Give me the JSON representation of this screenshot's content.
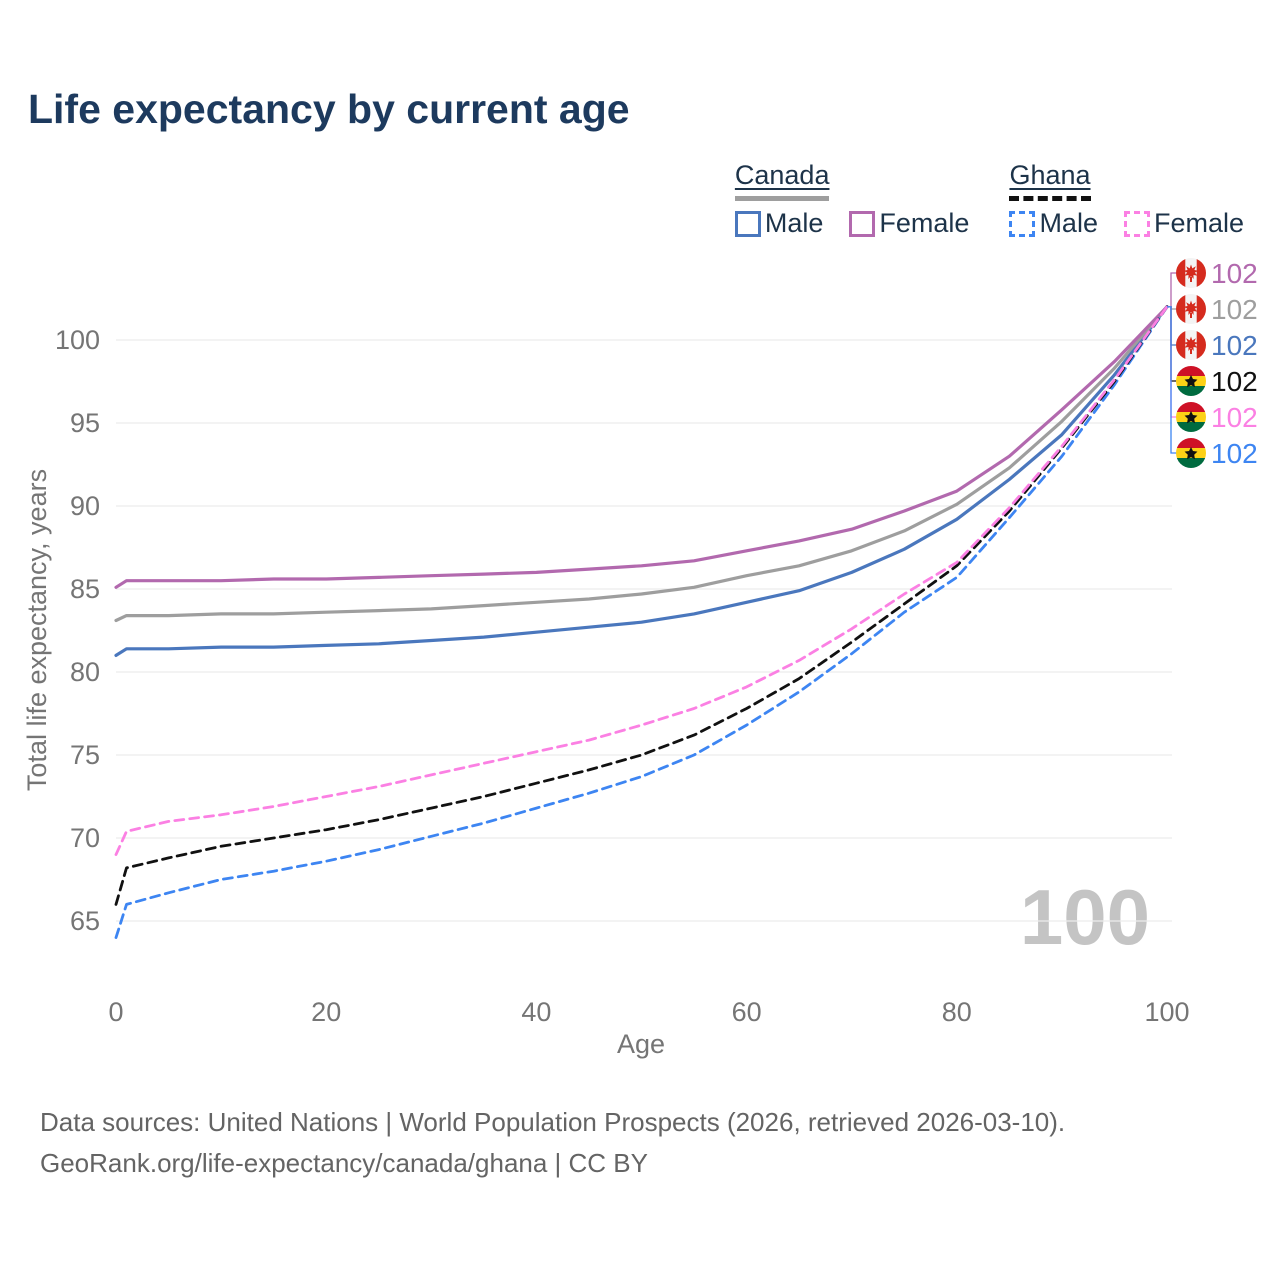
{
  "title": "Life expectancy by current age",
  "legend": {
    "groups": [
      {
        "country": "Canada",
        "line_style": "solid",
        "line_color": "#9e9e9e",
        "items": [
          {
            "label": "Male",
            "style": "solid",
            "color": "#4a77bd"
          },
          {
            "label": "Female",
            "style": "solid",
            "color": "#b269ae"
          }
        ]
      },
      {
        "country": "Ghana",
        "line_style": "dashed",
        "line_color": "#111111",
        "items": [
          {
            "label": "Male",
            "style": "dashed",
            "color": "#3d85f2"
          },
          {
            "label": "Female",
            "style": "dashed",
            "color": "#fb80e3"
          }
        ]
      }
    ]
  },
  "chart_data": {
    "type": "line",
    "title": "Life expectancy by current age",
    "xlabel": "Age",
    "ylabel": "Total life expectancy, years",
    "x_ticks": [
      0,
      20,
      40,
      60,
      80,
      100
    ],
    "y_ticks": [
      65,
      70,
      75,
      80,
      85,
      90,
      95,
      100
    ],
    "xlim": [
      0,
      100
    ],
    "ylim": [
      63,
      104
    ],
    "grid": "horizontal-only",
    "legend_position": "top-right",
    "age_watermark": "100",
    "x": [
      0,
      1,
      5,
      10,
      15,
      20,
      25,
      30,
      35,
      40,
      45,
      50,
      55,
      60,
      65,
      70,
      75,
      80,
      85,
      90,
      95,
      100
    ],
    "series": [
      {
        "name": "Canada Male",
        "country": "canada",
        "sex": "male",
        "style": "solid",
        "color": "#4a77bd",
        "values": [
          81.0,
          81.4,
          81.4,
          81.5,
          81.5,
          81.6,
          81.7,
          81.9,
          82.1,
          82.4,
          82.7,
          83.0,
          83.5,
          84.2,
          84.9,
          86.0,
          87.4,
          89.2,
          91.6,
          94.3,
          97.9,
          102
        ]
      },
      {
        "name": "Canada",
        "country": "canada",
        "sex": "both",
        "style": "solid",
        "color": "#9e9e9e",
        "values": [
          83.1,
          83.4,
          83.4,
          83.5,
          83.5,
          83.6,
          83.7,
          83.8,
          84.0,
          84.2,
          84.4,
          84.7,
          85.1,
          85.8,
          86.4,
          87.3,
          88.5,
          90.1,
          92.3,
          95.1,
          98.3,
          102
        ]
      },
      {
        "name": "Canada Female",
        "country": "canada",
        "sex": "female",
        "style": "solid",
        "color": "#b269ae",
        "values": [
          85.1,
          85.5,
          85.5,
          85.5,
          85.6,
          85.6,
          85.7,
          85.8,
          85.9,
          86.0,
          86.2,
          86.4,
          86.7,
          87.3,
          87.9,
          88.6,
          89.7,
          90.9,
          93.0,
          95.8,
          98.7,
          102
        ]
      },
      {
        "name": "Ghana Male",
        "country": "ghana",
        "sex": "male",
        "style": "dashed",
        "color": "#3d85f2",
        "values": [
          64.0,
          66.0,
          66.7,
          67.5,
          68.0,
          68.6,
          69.3,
          70.1,
          70.9,
          71.8,
          72.7,
          73.7,
          75.0,
          76.8,
          78.8,
          81.1,
          83.6,
          85.7,
          89.3,
          93.0,
          97.3,
          102
        ]
      },
      {
        "name": "Ghana",
        "country": "ghana",
        "sex": "both",
        "style": "dashed",
        "color": "#111111",
        "values": [
          66.0,
          68.2,
          68.8,
          69.5,
          70.0,
          70.5,
          71.1,
          71.8,
          72.5,
          73.3,
          74.1,
          75.0,
          76.2,
          77.8,
          79.6,
          81.8,
          84.1,
          86.4,
          89.7,
          93.5,
          97.5,
          102
        ]
      },
      {
        "name": "Ghana Female",
        "country": "ghana",
        "sex": "female",
        "style": "dashed",
        "color": "#fb80e3",
        "values": [
          69.0,
          70.4,
          71.0,
          71.4,
          71.9,
          72.5,
          73.1,
          73.8,
          74.5,
          75.2,
          75.9,
          76.8,
          77.8,
          79.1,
          80.7,
          82.6,
          84.7,
          86.6,
          89.9,
          93.6,
          97.6,
          102
        ]
      }
    ],
    "end_labels": [
      {
        "series": "Canada Female",
        "flag": "canada",
        "value": "102",
        "color": "#b269ae"
      },
      {
        "series": "Canada",
        "flag": "canada",
        "value": "102",
        "color": "#9e9e9e"
      },
      {
        "series": "Canada Male",
        "flag": "canada",
        "value": "102",
        "color": "#4a77bd"
      },
      {
        "series": "Ghana",
        "flag": "ghana",
        "value": "102",
        "color": "#111111"
      },
      {
        "series": "Ghana Female",
        "flag": "ghana",
        "value": "102",
        "color": "#fb80e3"
      },
      {
        "series": "Ghana Male",
        "flag": "ghana",
        "value": "102",
        "color": "#3d85f2"
      }
    ]
  },
  "footer": {
    "line1": "Data sources: United Nations | World Population Prospects (2026, retrieved 2026-03-10).",
    "line2": "GeoRank.org/life-expectancy/canada/ghana | CC BY"
  }
}
